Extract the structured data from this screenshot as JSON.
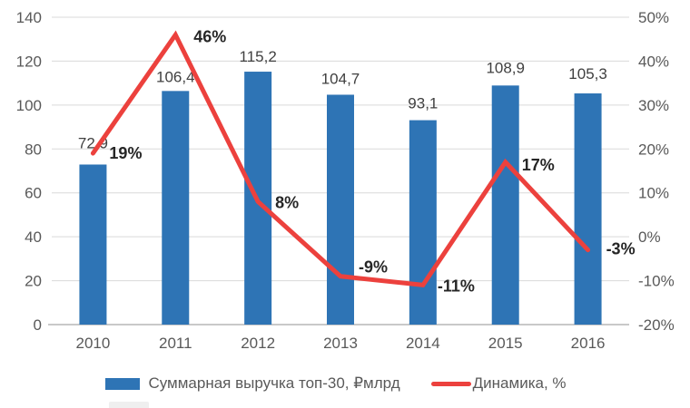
{
  "chart_data": {
    "type": "combo",
    "title": "",
    "categories": [
      "2010",
      "2011",
      "2012",
      "2013",
      "2014",
      "2015",
      "2016"
    ],
    "series": [
      {
        "name": "Суммарная выручка топ-30, ₽млрд",
        "type": "bar",
        "axis": "left",
        "color": "#2E74B5",
        "values": [
          72.9,
          106.4,
          115.2,
          104.7,
          93.1,
          108.9,
          105.3
        ],
        "labels": [
          "72,9",
          "106,4",
          "115,2",
          "104,7",
          "93,1",
          "108,9",
          "105,3"
        ]
      },
      {
        "name": "Динамика, %",
        "type": "line",
        "axis": "right",
        "color": "#EC413D",
        "values": [
          19,
          46,
          8,
          -9,
          -11,
          17,
          -3
        ],
        "labels": [
          "19%",
          "46%",
          "8%",
          "-9%",
          "-11%",
          "17%",
          "-3%"
        ]
      }
    ],
    "left_axis": {
      "min": 0,
      "max": 140,
      "step": 20,
      "ticks": [
        "0",
        "20",
        "40",
        "60",
        "80",
        "100",
        "120",
        "140"
      ]
    },
    "right_axis": {
      "min": -20,
      "max": 50,
      "step": 10,
      "ticks": [
        "-20%",
        "-10%",
        "0%",
        "10%",
        "20%",
        "30%",
        "40%",
        "50%"
      ]
    },
    "grid": true,
    "legend_position": "bottom"
  },
  "colors": {
    "background": "#FFFFFF",
    "grid": "#D9D9D9",
    "axis_line": "#C9C9C9",
    "tick_text": "#595959",
    "category_text": "#595959",
    "bar_label_text": "#404040",
    "line_label_text": "#262626",
    "legend_text": "#595959"
  }
}
